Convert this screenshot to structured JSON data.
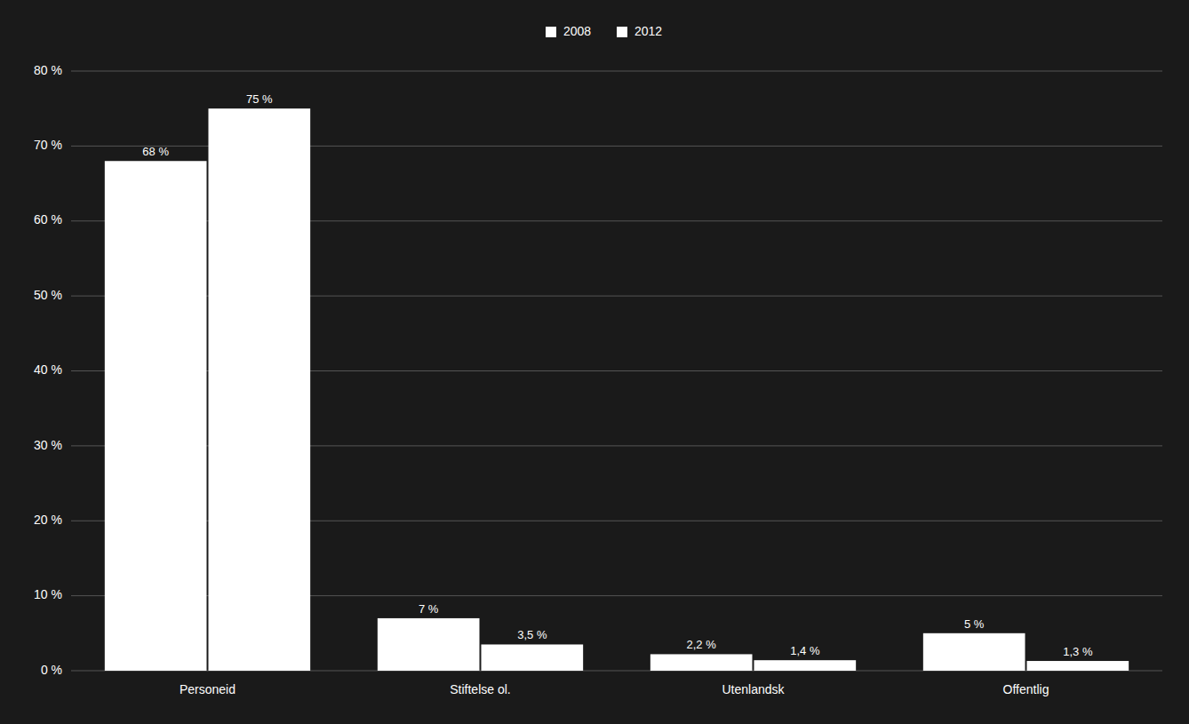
{
  "chart_data": {
    "type": "bar",
    "categories": [
      "Personeid",
      "Stiftelse ol.",
      "Utenlandsk",
      "Offentlig"
    ],
    "series": [
      {
        "name": "2008",
        "color": "#ffffff",
        "values": [
          68,
          7,
          2.2,
          5
        ],
        "value_labels": [
          "68 %",
          "7 %",
          "2,2 %",
          "5 %"
        ]
      },
      {
        "name": "2012",
        "color": "#ffffff",
        "values": [
          75,
          3.5,
          1.4,
          1.3
        ],
        "value_labels": [
          "75 %",
          "3,5 %",
          "1,4 %",
          "1,3 %"
        ]
      }
    ],
    "ylim": [
      0,
      80
    ],
    "yticks": [
      {
        "value": 0,
        "label": "0 %"
      },
      {
        "value": 10,
        "label": "10 %"
      },
      {
        "value": 20,
        "label": "20 %"
      },
      {
        "value": 30,
        "label": "30 %"
      },
      {
        "value": 40,
        "label": "40 %"
      },
      {
        "value": 50,
        "label": "50 %"
      },
      {
        "value": 60,
        "label": "60 %"
      },
      {
        "value": 70,
        "label": "70 %"
      },
      {
        "value": 80,
        "label": "80 %"
      }
    ],
    "grid": true,
    "legend": "top",
    "data_labels": true
  }
}
